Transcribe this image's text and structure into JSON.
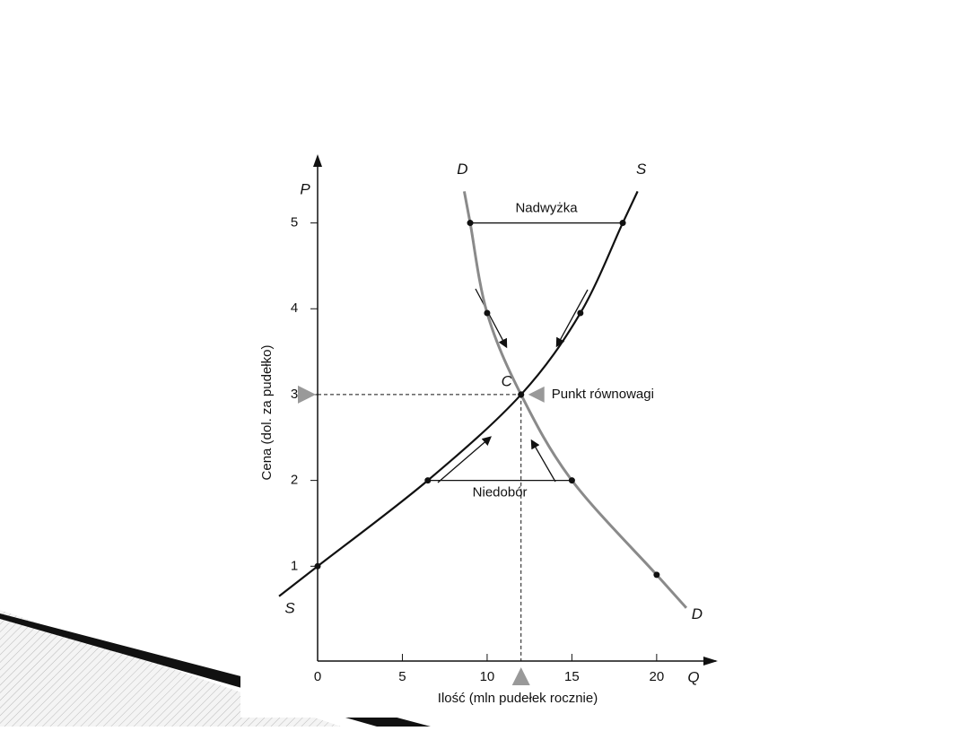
{
  "chart_data": {
    "type": "line",
    "xlabel": "Ilość (mln pudełek rocznie)",
    "ylabel": "Cena (dol. za pudełko)",
    "xaxis_symbol": "Q",
    "yaxis_symbol": "P",
    "xlim": [
      0,
      23.5
    ],
    "ylim": [
      0,
      5.8
    ],
    "xticks": [
      0,
      5,
      10,
      15,
      20
    ],
    "yticks": [
      1,
      2,
      3,
      4,
      5
    ],
    "series": [
      {
        "name": "S",
        "color": "#111111",
        "x": [
          0,
          6.5,
          12,
          15.5,
          18
        ],
        "values": [
          1,
          2,
          3,
          3.95,
          5
        ]
      },
      {
        "name": "D",
        "color": "#8a8a8a",
        "x": [
          9,
          10,
          12,
          15,
          20
        ],
        "values": [
          5,
          3.95,
          3,
          2,
          0.9
        ]
      }
    ],
    "equilibrium": {
      "label": "C",
      "note": "Punkt równowagi",
      "x": 12,
      "y": 3
    },
    "surplus": {
      "label": "Nadwyżka",
      "y": 5,
      "x": [
        9,
        18
      ]
    },
    "shortage": {
      "label": "Niedobór",
      "y": 2,
      "x": [
        6.5,
        15
      ]
    }
  }
}
